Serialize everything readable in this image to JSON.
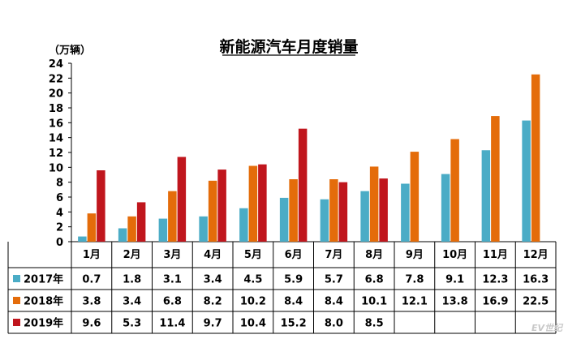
{
  "chart_data": {
    "type": "bar",
    "title": "新能源汽车月度销量",
    "unit_label": "（万辆）",
    "categories": [
      "1月",
      "2月",
      "3月",
      "4月",
      "5月",
      "6月",
      "7月",
      "8月",
      "9月",
      "10月",
      "11月",
      "12月"
    ],
    "ylim": [
      0,
      24
    ],
    "yticks": [
      0,
      2,
      4,
      6,
      8,
      10,
      12,
      14,
      16,
      18,
      20,
      22,
      24
    ],
    "grid": false,
    "legend_placement": "table-left",
    "series": [
      {
        "name": "2017年",
        "color": "#4bacc6",
        "values": [
          0.7,
          1.8,
          3.1,
          3.4,
          4.5,
          5.9,
          5.7,
          6.8,
          7.8,
          9.1,
          12.3,
          16.3
        ]
      },
      {
        "name": "2018年",
        "color": "#e46c0a",
        "values": [
          3.8,
          3.4,
          6.8,
          8.2,
          10.2,
          8.4,
          8.4,
          10.1,
          12.1,
          13.8,
          16.9,
          22.5
        ]
      },
      {
        "name": "2019年",
        "color": "#c0161d",
        "values": [
          9.6,
          5.3,
          11.4,
          9.7,
          10.4,
          15.2,
          8.0,
          8.5,
          null,
          null,
          null,
          null
        ]
      }
    ],
    "table_values": [
      [
        "0.7",
        "1.8",
        "3.1",
        "3.4",
        "4.5",
        "5.9",
        "5.7",
        "6.8",
        "7.8",
        "9.1",
        "12.3",
        "16.3"
      ],
      [
        "3.8",
        "3.4",
        "6.8",
        "8.2",
        "10.2",
        "8.4",
        "8.4",
        "10.1",
        "12.1",
        "13.8",
        "16.9",
        "22.5"
      ],
      [
        "9.6",
        "5.3",
        "11.4",
        "9.7",
        "10.4",
        "15.2",
        "8.0",
        "8.5",
        "",
        "",
        "",
        ""
      ]
    ]
  },
  "watermark": "EV世纪"
}
